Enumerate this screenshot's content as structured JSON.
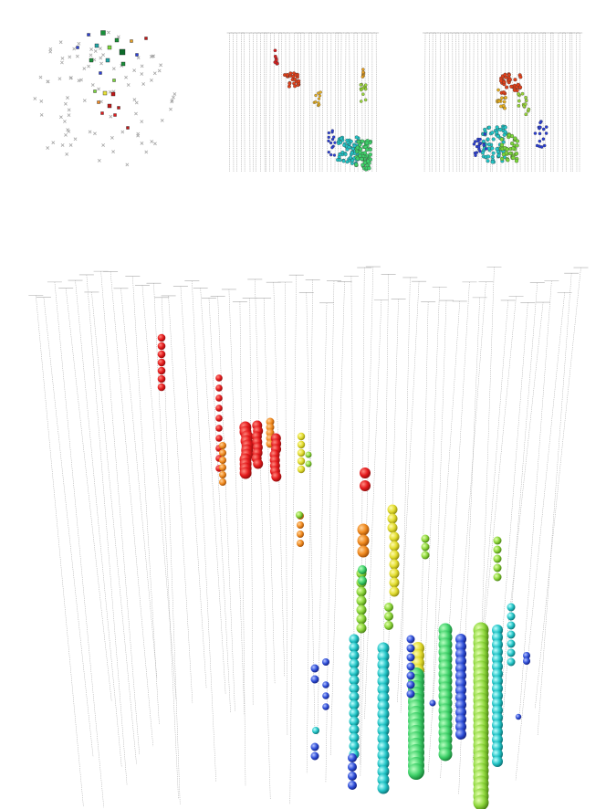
{
  "scene": {
    "colors": {
      "string": "#9a9a9a",
      "dom": "#b8b8b8",
      "hit_early": "#e41a1c",
      "hit_mid_early": "#f58a1f",
      "hit_mid": "#e8e23a",
      "hit_mid_late": "#7ad63a",
      "hit_late": "#1fc7c7",
      "hit_latest": "#2b3fd6"
    },
    "panels": [
      "top-view",
      "side-view-a",
      "side-view-b",
      "perspective-view"
    ]
  }
}
